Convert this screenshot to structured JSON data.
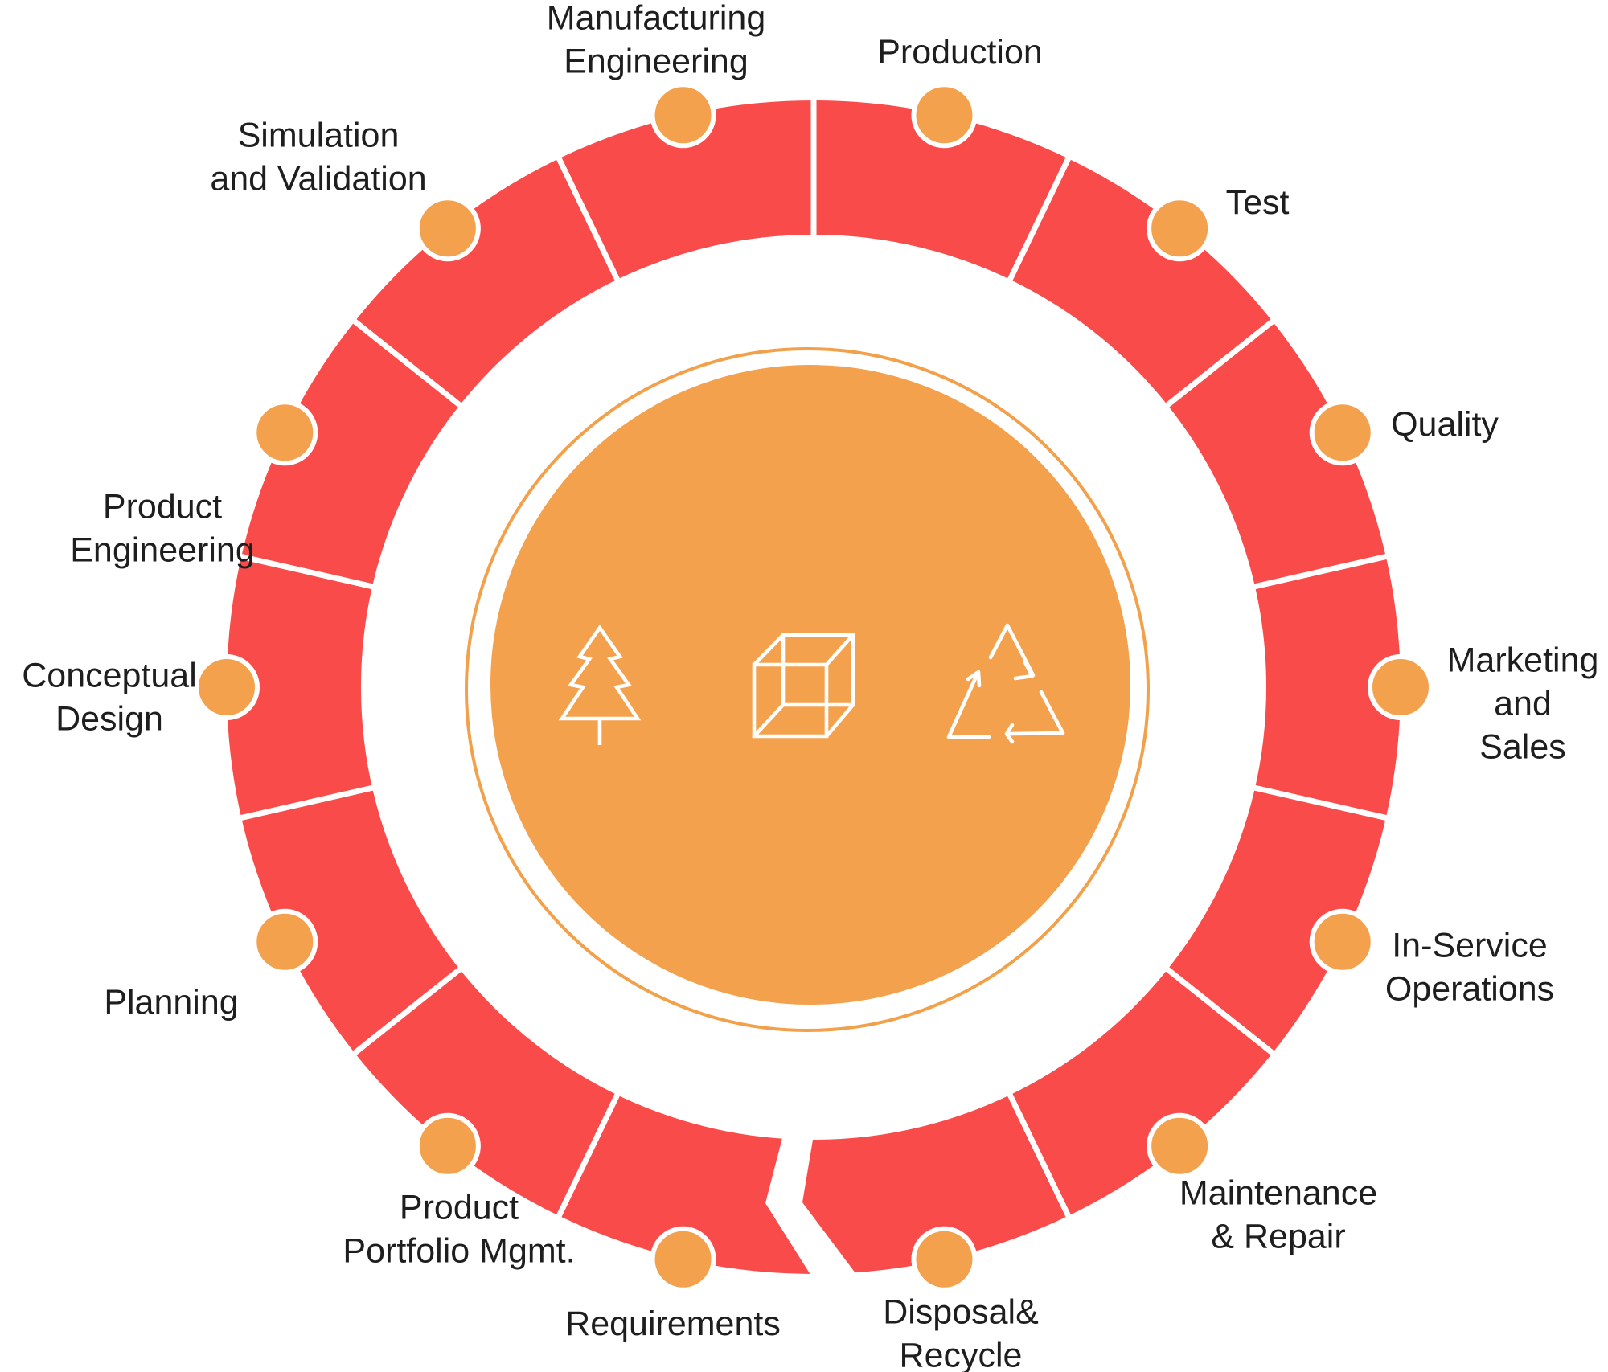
{
  "diagram": {
    "type": "cycle-wheel",
    "description": "Product lifecycle wheel with 14 stages flowing clockwise",
    "direction": "clockwise",
    "colors": {
      "background": "#ffffff",
      "ring": "#FA4B4B",
      "divider": "#FFFFFF",
      "node_fill": "#F4A14E",
      "node_stroke": "#FFFFFF",
      "center_disc": "#F4A14E",
      "center_outline": "#F2A04A",
      "icon_stroke": "#FFFFFF",
      "label_text": "#1E1E1E"
    },
    "stages": [
      {
        "label": "Requirements"
      },
      {
        "label": "Product\nPortfolio Mgmt."
      },
      {
        "label": "Planning"
      },
      {
        "label": "Conceptual\nDesign"
      },
      {
        "label": "Product\nEngineering"
      },
      {
        "label": "Simulation\nand Validation"
      },
      {
        "label": "Manufacturing\nEngineering"
      },
      {
        "label": "Production"
      },
      {
        "label": "Test"
      },
      {
        "label": "Quality"
      },
      {
        "label": "Marketing\nand Sales"
      },
      {
        "label": "In-Service\nOperations"
      },
      {
        "label": "Maintenance\n& Repair"
      },
      {
        "label": "Disposal&\nRecycle"
      }
    ],
    "arrow": {
      "from": "Disposal& Recycle",
      "to": "Requirements",
      "position": "bottom",
      "meaning": "cycle continues clockwise"
    },
    "center_icons": [
      "pine-tree-icon",
      "cube-icon",
      "recycle-triangle-icon"
    ]
  }
}
